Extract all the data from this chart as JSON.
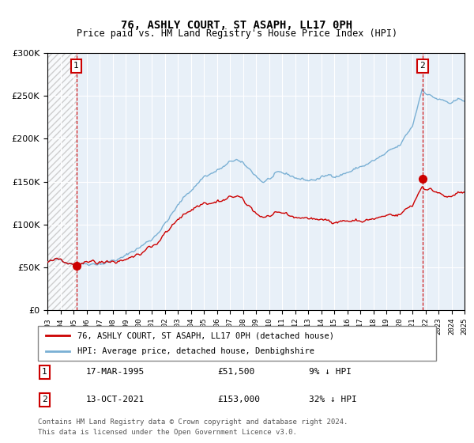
{
  "title": "76, ASHLY COURT, ST ASAPH, LL17 0PH",
  "subtitle": "Price paid vs. HM Land Registry's House Price Index (HPI)",
  "sale1_price": 51500,
  "sale1_label": "17-MAR-1995",
  "sale1_price_str": "£51,500",
  "sale1_hpi_pct": "9% ↓ HPI",
  "sale2_price": 153000,
  "sale2_label": "13-OCT-2021",
  "sale2_price_str": "£153,000",
  "sale2_hpi_pct": "32% ↓ HPI",
  "legend_property": "76, ASHLY COURT, ST ASAPH, LL17 0PH (detached house)",
  "legend_hpi": "HPI: Average price, detached house, Denbighshire",
  "footer": "Contains HM Land Registry data © Crown copyright and database right 2024.\nThis data is licensed under the Open Government Licence v3.0.",
  "plot_bg": "#e8f0f8",
  "red_line_color": "#cc0000",
  "blue_line_color": "#7ab0d4",
  "dot_color": "#cc0000",
  "vline_color": "#cc0000",
  "ylim": [
    0,
    300000
  ],
  "yticks": [
    0,
    50000,
    100000,
    150000,
    200000,
    250000,
    300000
  ]
}
